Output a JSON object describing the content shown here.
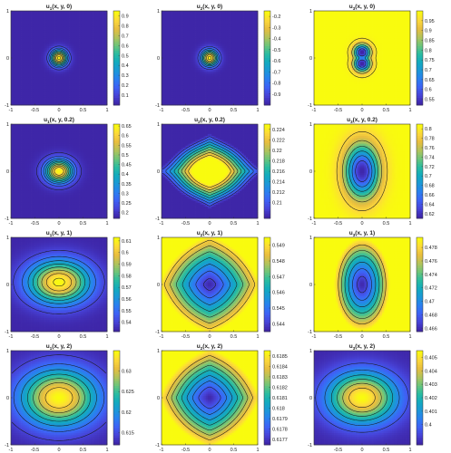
{
  "figure_grid": {
    "rows": 4,
    "cols": 3
  },
  "colors": {
    "colormap": [
      "#3e26a8",
      "#4743d8",
      "#3e62f5",
      "#2a7ff0",
      "#1b98d7",
      "#12abbe",
      "#2bbca0",
      "#6ec579",
      "#b4c35a",
      "#e8bd3e",
      "#fdd93b",
      "#f9fb0e"
    ],
    "contour_line": "#1a1a1a",
    "axes": "#333333"
  },
  "chart_data": [
    {
      "type": "heatmap",
      "title": "u1(x, y, 0)",
      "title_main": "u",
      "title_sub": "1",
      "title_rest": "(x, y, 0)",
      "xlim": [
        -1,
        1
      ],
      "ylim": [
        -1,
        1
      ],
      "xticks": [
        "-1",
        "-0.5",
        "0",
        "0.5",
        "1"
      ],
      "yticks": [
        "1",
        "0",
        "-1"
      ],
      "clim": [
        0.0,
        0.95
      ],
      "colorbar_ticks": [
        "0.9",
        "0.8",
        "0.7",
        "0.6",
        "0.5",
        "0.4",
        "0.3",
        "0.2",
        "0.1"
      ],
      "field": {
        "shape": "gaussian",
        "cx": 0,
        "cy": 0,
        "sx": 0.12,
        "sy": 0.12,
        "low": 0.0,
        "high": 0.95,
        "bg": 0.0
      },
      "levels": [
        0.1,
        0.2,
        0.3,
        0.4,
        0.5,
        0.6,
        0.7,
        0.8,
        0.9
      ]
    },
    {
      "type": "heatmap",
      "title": "u2(x, y, 0)",
      "title_main": "u",
      "title_sub": "2",
      "title_rest": "(x, y, 0)",
      "xlim": [
        -1,
        1
      ],
      "ylim": [
        -1,
        1
      ],
      "xticks": [
        "-1",
        "-0.5",
        "0",
        "0.5",
        "1"
      ],
      "yticks": [
        "1",
        "0",
        "-1"
      ],
      "clim": [
        -1.0,
        -0.15
      ],
      "colorbar_ticks": [
        "-0.2",
        "-0.3",
        "-0.4",
        "-0.5",
        "-0.6",
        "-0.7",
        "-0.8",
        "-0.9"
      ],
      "field": {
        "shape": "gaussian",
        "cx": 0,
        "cy": 0,
        "sx": 0.12,
        "sy": 0.12,
        "low": -1.0,
        "high": -0.15,
        "bg": -1.0
      },
      "levels": [
        -0.9,
        -0.8,
        -0.7,
        -0.6,
        -0.5,
        -0.4,
        -0.3,
        -0.2
      ]
    },
    {
      "type": "heatmap",
      "title": "u3(x, y, 0)",
      "title_main": "u",
      "title_sub": "3",
      "title_rest": "(x, y, 0)",
      "xlim": [
        -1,
        1
      ],
      "ylim": [
        -1,
        1
      ],
      "xticks": [
        "-1",
        "-0.5",
        "0",
        "0.5",
        "1"
      ],
      "yticks": [
        "1",
        "0",
        "-1"
      ],
      "clim": [
        0.52,
        1.0
      ],
      "colorbar_ticks": [
        "0.95",
        "0.9",
        "0.85",
        "0.8",
        "0.75",
        "0.7",
        "0.65",
        "0.6",
        "0.55"
      ],
      "field": {
        "shape": "dumbbell",
        "cx": 0,
        "cy": 0,
        "sx": 0.12,
        "sy": 0.12,
        "dy": 0.12,
        "low": 0.52,
        "high": 1.0,
        "bg": 1.0
      },
      "levels": [
        0.6,
        0.7,
        0.8,
        0.9,
        0.98
      ]
    },
    {
      "type": "heatmap",
      "title": "u1(x, y, 0.2)",
      "title_main": "u",
      "title_sub": "1",
      "title_rest": "(x, y, 0.2)",
      "xlim": [
        -1,
        1
      ],
      "ylim": [
        -1,
        1
      ],
      "xticks": [
        "-1",
        "-0.5",
        "0",
        "0.5",
        "1"
      ],
      "yticks": [
        "1",
        "0",
        "-1"
      ],
      "clim": [
        0.17,
        0.66
      ],
      "colorbar_ticks": [
        "0.65",
        "0.6",
        "0.55",
        "0.5",
        "0.45",
        "0.4",
        "0.35",
        "0.3",
        "0.25",
        "0.2"
      ],
      "field": {
        "shape": "gaussian",
        "cx": 0,
        "cy": 0,
        "sx": 0.2,
        "sy": 0.17,
        "low": 0.17,
        "high": 0.66,
        "bg": 0.17
      },
      "levels": [
        0.2,
        0.25,
        0.3,
        0.35,
        0.4,
        0.45,
        0.5,
        0.55,
        0.6
      ]
    },
    {
      "type": "heatmap",
      "title": "u2(x, y, 0.2)",
      "title_main": "u",
      "title_sub": "2",
      "title_rest": "(x, y, 0.2)",
      "xlim": [
        -1,
        1
      ],
      "ylim": [
        -1,
        1
      ],
      "xticks": [
        "-1",
        "-0.5",
        "0",
        "0.5",
        "1"
      ],
      "yticks": [
        "1",
        "0",
        "-1"
      ],
      "clim": [
        0.207,
        0.225
      ],
      "colorbar_ticks": [
        "0.224",
        "0.222",
        "0.22",
        "0.218",
        "0.216",
        "0.214",
        "0.212",
        "0.21"
      ],
      "field": {
        "shape": "saddle",
        "cx": 0,
        "cy": 0,
        "sx": 0.45,
        "sy": 0.3,
        "low": 0.207,
        "high": 0.225,
        "bg": 0.207
      },
      "levels": [
        0.209,
        0.211,
        0.213,
        0.215,
        0.217,
        0.219,
        0.221,
        0.223
      ]
    },
    {
      "type": "heatmap",
      "title": "u3(x, y, 0.2)",
      "title_main": "u",
      "title_sub": "3",
      "title_rest": "(x, y, 0.2)",
      "xlim": [
        -1,
        1
      ],
      "ylim": [
        -1,
        1
      ],
      "xticks": [
        "-1",
        "-0.5",
        "0",
        "0.5",
        "1"
      ],
      "yticks": [
        "1",
        "0",
        "-1"
      ],
      "clim": [
        0.61,
        0.81
      ],
      "colorbar_ticks": [
        "0.8",
        "0.78",
        "0.76",
        "0.74",
        "0.72",
        "0.7",
        "0.68",
        "0.66",
        "0.64",
        "0.62"
      ],
      "field": {
        "shape": "ringwell",
        "cx": 0,
        "cy": 0,
        "sx": 0.25,
        "sy": 0.4,
        "low": 0.61,
        "high": 0.81,
        "bg": 0.81
      },
      "levels": [
        0.64,
        0.67,
        0.7,
        0.73,
        0.76,
        0.79
      ]
    },
    {
      "type": "heatmap",
      "title": "u1(x, y, 1)",
      "title_main": "u",
      "title_sub": "1",
      "title_rest": "(x, y, 1)",
      "xlim": [
        -1,
        1
      ],
      "ylim": [
        -1,
        1
      ],
      "xticks": [
        "-1",
        "-0.5",
        "0",
        "0.5",
        "1"
      ],
      "yticks": [
        "1",
        "0",
        "-1"
      ],
      "clim": [
        0.532,
        0.613
      ],
      "colorbar_ticks": [
        "0.61",
        "0.6",
        "0.59",
        "0.58",
        "0.57",
        "0.56",
        "0.55",
        "0.54"
      ],
      "field": {
        "shape": "gaussian",
        "cx": 0,
        "cy": 0.05,
        "sx": 0.45,
        "sy": 0.32,
        "low": 0.532,
        "high": 0.613,
        "bg": 0.532
      },
      "levels": [
        0.54,
        0.55,
        0.56,
        0.57,
        0.58,
        0.59,
        0.6,
        0.61
      ]
    },
    {
      "type": "heatmap",
      "title": "u2(x, y, 1)",
      "title_main": "u",
      "title_sub": "2",
      "title_rest": "(x, y, 1)",
      "xlim": [
        -1,
        1
      ],
      "ylim": [
        -1,
        1
      ],
      "xticks": [
        "-1",
        "-0.5",
        "0",
        "0.5",
        "1"
      ],
      "yticks": [
        "1",
        "0",
        "-1"
      ],
      "clim": [
        0.5435,
        0.5495
      ],
      "colorbar_ticks": [
        "0.549",
        "0.548",
        "0.547",
        "0.546",
        "0.545",
        "0.544"
      ],
      "field": {
        "shape": "diamondwell",
        "cx": 0,
        "cy": 0,
        "sx": 0.5,
        "sy": 0.5,
        "low": 0.5435,
        "high": 0.5495,
        "bg": 0.5495
      },
      "levels": [
        0.544,
        0.5448,
        0.5456,
        0.5464,
        0.5472,
        0.548,
        0.5488
      ]
    },
    {
      "type": "heatmap",
      "title": "u3(x, y, 1)",
      "title_main": "u",
      "title_sub": "3",
      "title_rest": "(x, y, 1)",
      "xlim": [
        -1,
        1
      ],
      "ylim": [
        -1,
        1
      ],
      "xticks": [
        "-1",
        "-0.5",
        "0",
        "0.5",
        "1"
      ],
      "yticks": [
        "1",
        "0",
        "-1"
      ],
      "clim": [
        0.4655,
        0.4795
      ],
      "colorbar_ticks": [
        "0.478",
        "0.476",
        "0.474",
        "0.472",
        "0.47",
        "0.468",
        "0.466"
      ],
      "field": {
        "shape": "ellipsewell",
        "cx": 0,
        "cy": 0,
        "sx": 0.32,
        "sy": 0.62,
        "low": 0.4655,
        "high": 0.4795,
        "bg": 0.4795
      },
      "levels": [
        0.467,
        0.469,
        0.471,
        0.473,
        0.475,
        0.477
      ]
    },
    {
      "type": "heatmap",
      "title": "u1(x, y, 2)",
      "title_main": "u",
      "title_sub": "1",
      "title_rest": "(x, y, 2)",
      "xlim": [
        -1,
        1
      ],
      "ylim": [
        -1,
        1
      ],
      "xticks": [
        "-1",
        "-0.5",
        "0",
        "0.5",
        "1"
      ],
      "yticks": [
        "1",
        "0",
        "-1"
      ],
      "clim": [
        0.612,
        0.635
      ],
      "colorbar_ticks": [
        "0.63",
        "0.625",
        "0.62",
        "0.615"
      ],
      "field": {
        "shape": "gaussian",
        "cx": 0,
        "cy": 0,
        "sx": 0.55,
        "sy": 0.42,
        "low": 0.612,
        "high": 0.635,
        "bg": 0.612
      },
      "levels": [
        0.614,
        0.617,
        0.62,
        0.623,
        0.626,
        0.629,
        0.632
      ]
    },
    {
      "type": "heatmap",
      "title": "u2(x, y, 2)",
      "title_main": "u",
      "title_sub": "2",
      "title_rest": "(x, y, 2)",
      "xlim": [
        -1,
        1
      ],
      "ylim": [
        -1,
        1
      ],
      "xticks": [
        "-1",
        "-0.5",
        "0",
        "0.5",
        "1"
      ],
      "yticks": [
        "1",
        "0",
        "-1"
      ],
      "clim": [
        0.61765,
        0.61855
      ],
      "colorbar_ticks": [
        "0.6185",
        "0.6184",
        "0.6183",
        "0.6182",
        "0.6181",
        "0.618",
        "0.6179",
        "0.6178",
        "0.6177"
      ],
      "field": {
        "shape": "diamondwell",
        "cx": 0,
        "cy": 0,
        "sx": 0.5,
        "sy": 0.5,
        "low": 0.61765,
        "high": 0.61855,
        "bg": 0.61855
      },
      "levels": [
        0.6178,
        0.6179,
        0.618,
        0.6181,
        0.6182,
        0.6183,
        0.6184
      ]
    },
    {
      "type": "heatmap",
      "title": "u3(x, y, 2)",
      "title_main": "u",
      "title_sub": "3",
      "title_rest": "(x, y, 2)",
      "xlim": [
        -1,
        1
      ],
      "ylim": [
        -1,
        1
      ],
      "xticks": [
        "-0.5",
        "0",
        "0.5",
        "1"
      ],
      "yticks": [
        "1",
        "0",
        "-1"
      ],
      "clim": [
        0.3985,
        0.4055
      ],
      "colorbar_ticks": [
        "0.405",
        "0.404",
        "0.403",
        "0.402",
        "0.401",
        "0.4"
      ],
      "field": {
        "shape": "gaussian",
        "cx": 0,
        "cy": 0,
        "sx": 0.5,
        "sy": 0.38,
        "low": 0.3985,
        "high": 0.4055,
        "bg": 0.3985
      },
      "levels": [
        0.3995,
        0.4005,
        0.4015,
        0.4025,
        0.4035,
        0.4045
      ]
    }
  ]
}
